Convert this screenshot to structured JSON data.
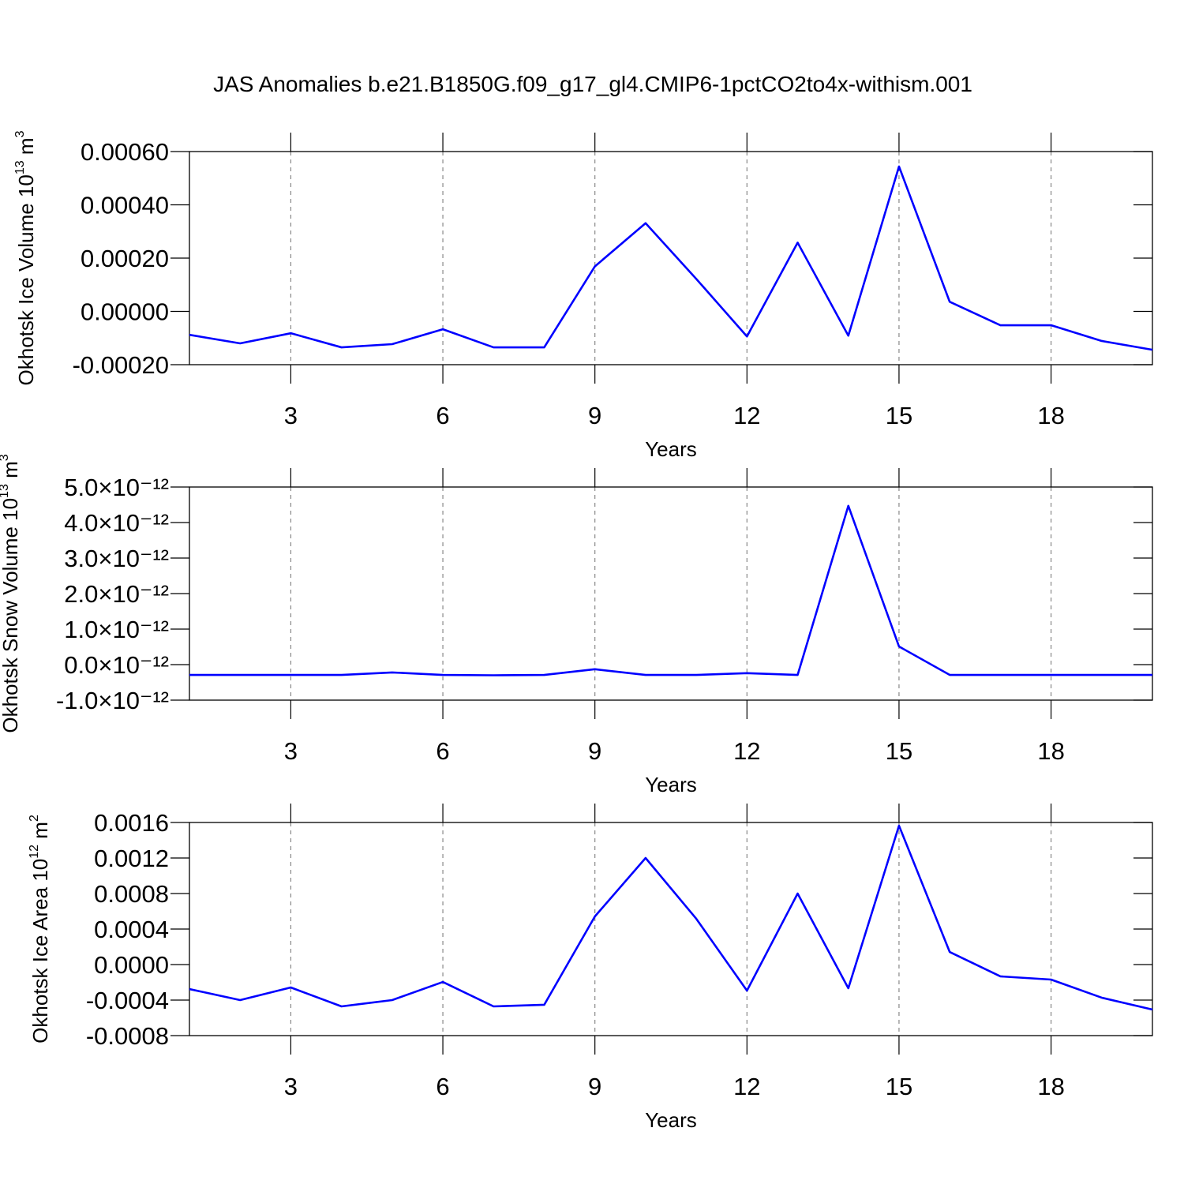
{
  "chart_data": [
    {
      "type": "line",
      "title": "JAS Anomalies b.e21.B1850G.f09_g17_gl4.CMIP6-1pctCO2to4x-withism.001",
      "ylabel": [
        "Okhotsk Ice Volume 10",
        "13",
        " m",
        "3"
      ],
      "xlabel": "Years",
      "x": [
        1,
        2,
        3,
        4,
        5,
        6,
        7,
        8,
        9,
        10,
        11,
        12,
        13,
        14,
        15,
        16,
        17,
        18,
        19,
        20
      ],
      "values": [
        -8.8e-05,
        -0.00012,
        -8.2e-05,
        -0.000135,
        -0.000123,
        -6.7e-05,
        -0.000135,
        -0.000135,
        0.000169,
        0.000331,
        0.000122,
        -9.4e-05,
        0.000258,
        -9.1e-05,
        0.000544,
        3.6e-05,
        -5.2e-05,
        -5.2e-05,
        -0.000111,
        -0.000144
      ],
      "color": "#0000ff",
      "xlim": [
        1,
        20
      ],
      "xticks": [
        3,
        6,
        9,
        12,
        15,
        18
      ],
      "ylim": [
        -0.0002,
        0.0006
      ],
      "yticks": [
        {
          "value": -0.0002,
          "label": "-0.00020"
        },
        {
          "value": 0,
          "label": "0.00000"
        },
        {
          "value": 0.0002,
          "label": "0.00020"
        },
        {
          "value": 0.0004,
          "label": "0.00040"
        },
        {
          "value": 0.0006,
          "label": "0.00060"
        }
      ],
      "grid": true
    },
    {
      "type": "line",
      "ylabel": [
        "Okhotsk Snow Volume 10",
        "13",
        " m",
        "3"
      ],
      "xlabel": "Years",
      "x": [
        1,
        2,
        3,
        4,
        5,
        6,
        7,
        8,
        9,
        10,
        11,
        12,
        13,
        14,
        15,
        16,
        17,
        18,
        19,
        20
      ],
      "values": [
        -2.9e-13,
        -2.9e-13,
        -2.9e-13,
        -2.9e-13,
        -2.2e-13,
        -2.9e-13,
        -3e-13,
        -2.9e-13,
        -1.3e-13,
        -2.9e-13,
        -2.9e-13,
        -2.4e-13,
        -2.9e-13,
        4.47e-12,
        5.1e-13,
        -2.9e-13,
        -2.9e-13,
        -2.9e-13,
        -2.9e-13,
        -2.9e-13
      ],
      "color": "#0000ff",
      "xlim": [
        1,
        20
      ],
      "xticks": [
        3,
        6,
        9,
        12,
        15,
        18
      ],
      "ylim": [
        -1e-12,
        5e-12
      ],
      "yticks": [
        {
          "value": -1e-12,
          "label": "-1.0×10⁻¹²"
        },
        {
          "value": 0,
          "label": "0.0×10⁻¹²"
        },
        {
          "value": 1e-12,
          "label": "1.0×10⁻¹²"
        },
        {
          "value": 2e-12,
          "label": "2.0×10⁻¹²"
        },
        {
          "value": 3e-12,
          "label": "3.0×10⁻¹²"
        },
        {
          "value": 4e-12,
          "label": "4.0×10⁻¹²"
        },
        {
          "value": 5e-12,
          "label": "5.0×10⁻¹²"
        }
      ],
      "grid": true
    },
    {
      "type": "line",
      "ylabel": [
        "Okhotsk Ice Area 10",
        "12",
        " m",
        "2"
      ],
      "xlabel": "Years",
      "x": [
        1,
        2,
        3,
        4,
        5,
        6,
        7,
        8,
        9,
        10,
        11,
        12,
        13,
        14,
        15,
        16,
        17,
        18,
        19,
        20
      ],
      "values": [
        -0.000276,
        -0.0004,
        -0.000258,
        -0.000471,
        -0.0004,
        -0.000196,
        -0.000471,
        -0.000453,
        0.000542,
        0.0012,
        0.000516,
        -0.000293,
        0.0008,
        -0.000267,
        0.001564,
        0.000142,
        -0.000133,
        -0.000169,
        -0.000373,
        -0.000507
      ],
      "color": "#0000ff",
      "xlim": [
        1,
        20
      ],
      "xticks": [
        3,
        6,
        9,
        12,
        15,
        18
      ],
      "ylim": [
        -0.0008,
        0.0016
      ],
      "yticks": [
        -0.0008,
        -0.0004,
        {
          "value": 0,
          "label": "0.0000"
        },
        0.0004,
        0.0008,
        0.0012,
        0.0016
      ],
      "grid": true
    }
  ]
}
